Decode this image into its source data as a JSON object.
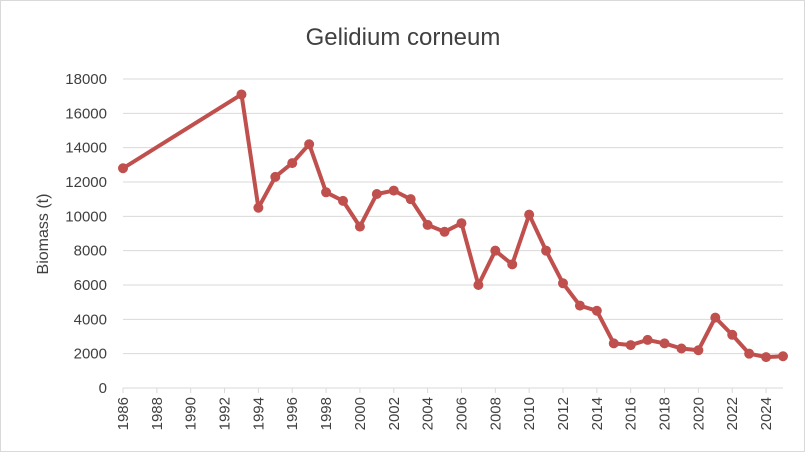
{
  "chart_data": {
    "type": "line",
    "title": "Gelidium corneum",
    "xlabel": "",
    "ylabel": "Biomass (t)",
    "xlim": [
      1986,
      2025
    ],
    "ylim": [
      0,
      18000
    ],
    "y_ticks": [
      0,
      2000,
      4000,
      6000,
      8000,
      10000,
      12000,
      14000,
      16000,
      18000
    ],
    "x_ticks": [
      1986,
      1988,
      1990,
      1992,
      1994,
      1996,
      1998,
      2000,
      2002,
      2004,
      2006,
      2008,
      2010,
      2012,
      2014,
      2016,
      2018,
      2020,
      2022,
      2024
    ],
    "grid": "horizontal",
    "legend": "none",
    "colors": {
      "series": "#c0504d",
      "grid": "#d9d9d9",
      "text": "#404040"
    },
    "series": [
      {
        "x": [
          1986,
          1993,
          1994,
          1995,
          1996,
          1997,
          1998,
          1999,
          2000,
          2001,
          2002,
          2003,
          2004,
          2005,
          2006,
          2007,
          2008,
          2009,
          2010,
          2011,
          2012,
          2013,
          2014,
          2015,
          2016,
          2017,
          2018,
          2019,
          2020,
          2021,
          2022,
          2023,
          2024,
          2025
        ],
        "values": [
          12800,
          17100,
          10500,
          12300,
          13100,
          14200,
          11400,
          10900,
          9400,
          11300,
          11500,
          11000,
          9500,
          9100,
          9600,
          6000,
          8000,
          7200,
          10100,
          8000,
          6100,
          4800,
          4500,
          2600,
          2500,
          2800,
          2600,
          2300,
          2200,
          4100,
          3100,
          2000,
          1800,
          1850
        ]
      }
    ]
  }
}
